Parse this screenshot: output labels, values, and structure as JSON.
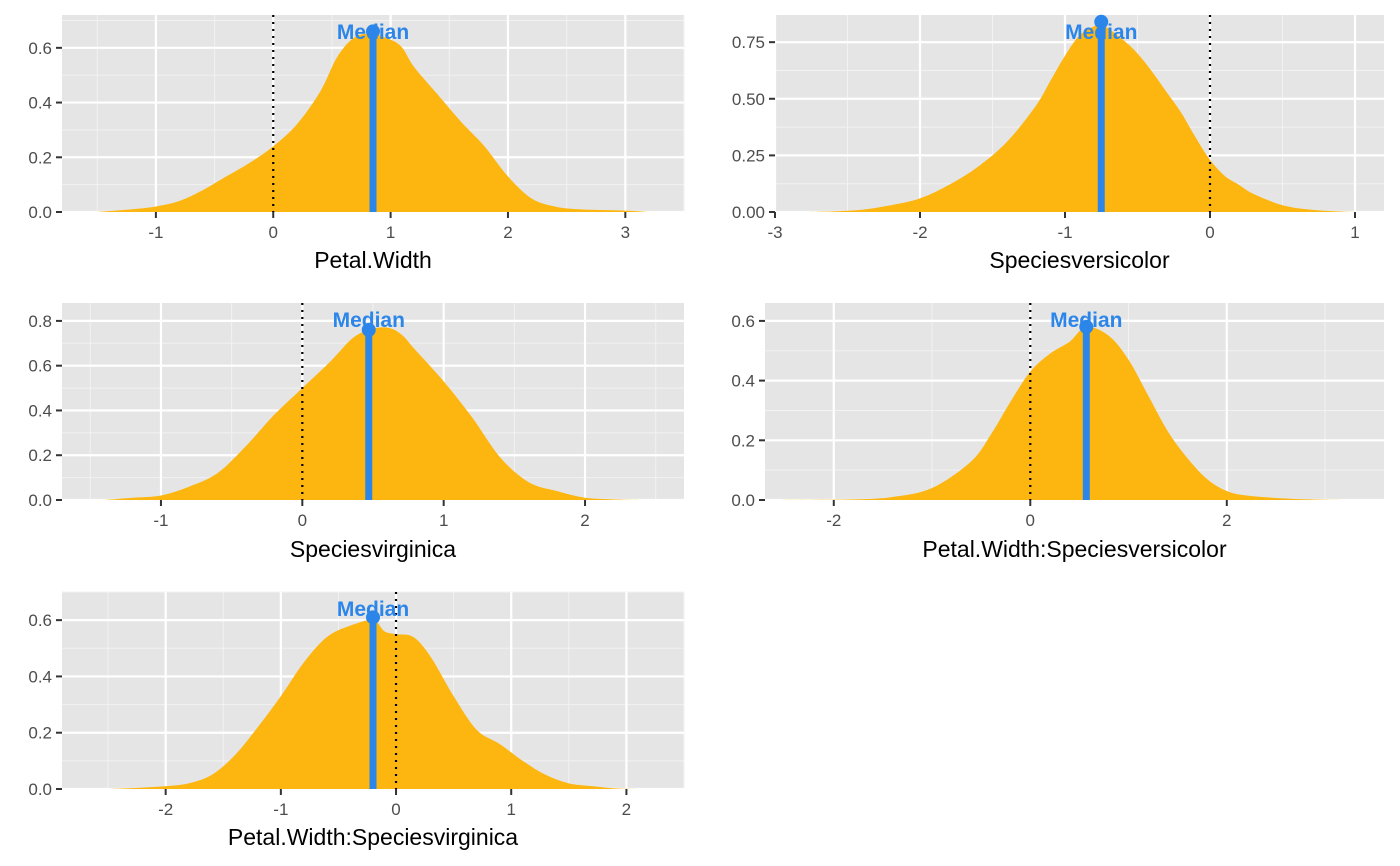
{
  "colors": {
    "panel_background": "#e5e5e5",
    "grid_major": "#ffffff",
    "grid_minor": "#f2f2f2",
    "density_fill": "#fdb50f",
    "median": "#2c86ea",
    "zero_line": "#000000"
  },
  "median_label": "Median",
  "chart_data": [
    {
      "type": "area",
      "xlabel": "Petal.Width",
      "xlim": [
        -1.8,
        3.5
      ],
      "ylim": [
        0,
        0.72
      ],
      "xticks": [
        -1,
        0,
        1,
        2,
        3
      ],
      "yticks": [
        0.0,
        0.2,
        0.4,
        0.6
      ],
      "ytick_labels": [
        "0.0",
        "0.2",
        "0.4",
        "0.6"
      ],
      "median": 0.85,
      "median_density": 0.66,
      "reference_line": 0,
      "grid": true,
      "x": [
        -1.5,
        -1.2,
        -1.0,
        -0.8,
        -0.6,
        -0.4,
        -0.2,
        0.0,
        0.2,
        0.4,
        0.55,
        0.7,
        0.85,
        1.0,
        1.1,
        1.2,
        1.4,
        1.6,
        1.8,
        2.0,
        2.2,
        2.4,
        2.6,
        3.0,
        3.2
      ],
      "y": [
        0.0,
        0.01,
        0.02,
        0.04,
        0.08,
        0.13,
        0.18,
        0.24,
        0.32,
        0.44,
        0.57,
        0.64,
        0.65,
        0.63,
        0.6,
        0.53,
        0.43,
        0.33,
        0.24,
        0.13,
        0.05,
        0.02,
        0.01,
        0.005,
        0.0
      ]
    },
    {
      "type": "area",
      "xlabel": "Speciesversicolor",
      "xlim": [
        -3.0,
        1.2
      ],
      "ylim": [
        0,
        0.87
      ],
      "xticks": [
        -3,
        -2,
        -1,
        0,
        1
      ],
      "yticks": [
        0.0,
        0.25,
        0.5,
        0.75
      ],
      "ytick_labels": [
        "0.00",
        "0.25",
        "0.50",
        "0.75"
      ],
      "median": -0.75,
      "median_density": 0.84,
      "reference_line": 0,
      "grid": true,
      "x": [
        -2.8,
        -2.6,
        -2.4,
        -2.2,
        -2.0,
        -1.8,
        -1.6,
        -1.4,
        -1.2,
        -1.1,
        -1.0,
        -0.9,
        -0.8,
        -0.75,
        -0.6,
        -0.5,
        -0.4,
        -0.3,
        -0.2,
        -0.1,
        0.0,
        0.1,
        0.2,
        0.3,
        0.5,
        0.7,
        0.9,
        1.0
      ],
      "y": [
        0.0,
        0.003,
        0.01,
        0.03,
        0.06,
        0.12,
        0.2,
        0.31,
        0.47,
        0.58,
        0.69,
        0.78,
        0.82,
        0.83,
        0.76,
        0.7,
        0.62,
        0.53,
        0.44,
        0.33,
        0.23,
        0.16,
        0.12,
        0.08,
        0.03,
        0.01,
        0.002,
        0.0
      ]
    },
    {
      "type": "area",
      "xlabel": "Speciesvirginica",
      "xlim": [
        -1.7,
        2.7
      ],
      "ylim": [
        0,
        0.88
      ],
      "xticks": [
        -1,
        0,
        1,
        2
      ],
      "yticks": [
        0.0,
        0.2,
        0.4,
        0.6,
        0.8
      ],
      "ytick_labels": [
        "0.0",
        "0.2",
        "0.4",
        "0.6",
        "0.8"
      ],
      "median": 0.47,
      "median_density": 0.76,
      "reference_line": 0,
      "grid": true,
      "x": [
        -1.4,
        -1.2,
        -1.0,
        -0.8,
        -0.6,
        -0.4,
        -0.2,
        0.0,
        0.2,
        0.35,
        0.47,
        0.6,
        0.7,
        0.8,
        1.0,
        1.2,
        1.4,
        1.6,
        1.8,
        2.0,
        2.2,
        2.4
      ],
      "y": [
        0.0,
        0.01,
        0.02,
        0.06,
        0.12,
        0.24,
        0.38,
        0.5,
        0.62,
        0.72,
        0.76,
        0.77,
        0.74,
        0.67,
        0.53,
        0.37,
        0.19,
        0.08,
        0.04,
        0.01,
        0.003,
        0.0
      ]
    },
    {
      "type": "area",
      "xlabel": "Petal.Width:Speciesversicolor",
      "xlim": [
        -2.7,
        3.6
      ],
      "ylim": [
        0,
        0.66
      ],
      "xticks": [
        -2,
        0,
        2
      ],
      "yticks": [
        0.0,
        0.2,
        0.4,
        0.6
      ],
      "ytick_labels": [
        "0.0",
        "0.2",
        "0.4",
        "0.6"
      ],
      "median": 0.57,
      "median_density": 0.58,
      "reference_line": 0,
      "grid": true,
      "x": [
        -2.6,
        -1.8,
        -1.4,
        -1.0,
        -0.6,
        -0.4,
        -0.2,
        0.0,
        0.2,
        0.4,
        0.57,
        0.8,
        1.0,
        1.2,
        1.4,
        1.6,
        1.8,
        2.0,
        2.2,
        2.6,
        3.0,
        3.4
      ],
      "y": [
        0.0,
        0.002,
        0.01,
        0.04,
        0.13,
        0.22,
        0.33,
        0.43,
        0.49,
        0.53,
        0.58,
        0.55,
        0.47,
        0.35,
        0.23,
        0.14,
        0.07,
        0.03,
        0.015,
        0.005,
        0.001,
        0.0
      ]
    },
    {
      "type": "area",
      "xlabel": "Petal.Width:Speciesvirginica",
      "xlim": [
        -2.9,
        2.5
      ],
      "ylim": [
        0,
        0.7
      ],
      "xticks": [
        -2,
        -1,
        0,
        1,
        2
      ],
      "yticks": [
        0.0,
        0.2,
        0.4,
        0.6
      ],
      "ytick_labels": [
        "0.0",
        "0.2",
        "0.4",
        "0.6"
      ],
      "median": -0.2,
      "median_density": 0.61,
      "reference_line": 0,
      "grid": true,
      "x": [
        -2.5,
        -2.2,
        -2.0,
        -1.8,
        -1.6,
        -1.4,
        -1.2,
        -1.0,
        -0.8,
        -0.6,
        -0.4,
        -0.2,
        -0.1,
        0.0,
        0.15,
        0.3,
        0.5,
        0.7,
        0.9,
        1.1,
        1.3,
        1.5,
        1.7,
        1.9,
        2.1
      ],
      "y": [
        0.0,
        0.005,
        0.01,
        0.02,
        0.05,
        0.12,
        0.22,
        0.33,
        0.45,
        0.54,
        0.58,
        0.6,
        0.56,
        0.55,
        0.54,
        0.47,
        0.33,
        0.21,
        0.16,
        0.1,
        0.05,
        0.02,
        0.01,
        0.002,
        0.0
      ]
    }
  ]
}
